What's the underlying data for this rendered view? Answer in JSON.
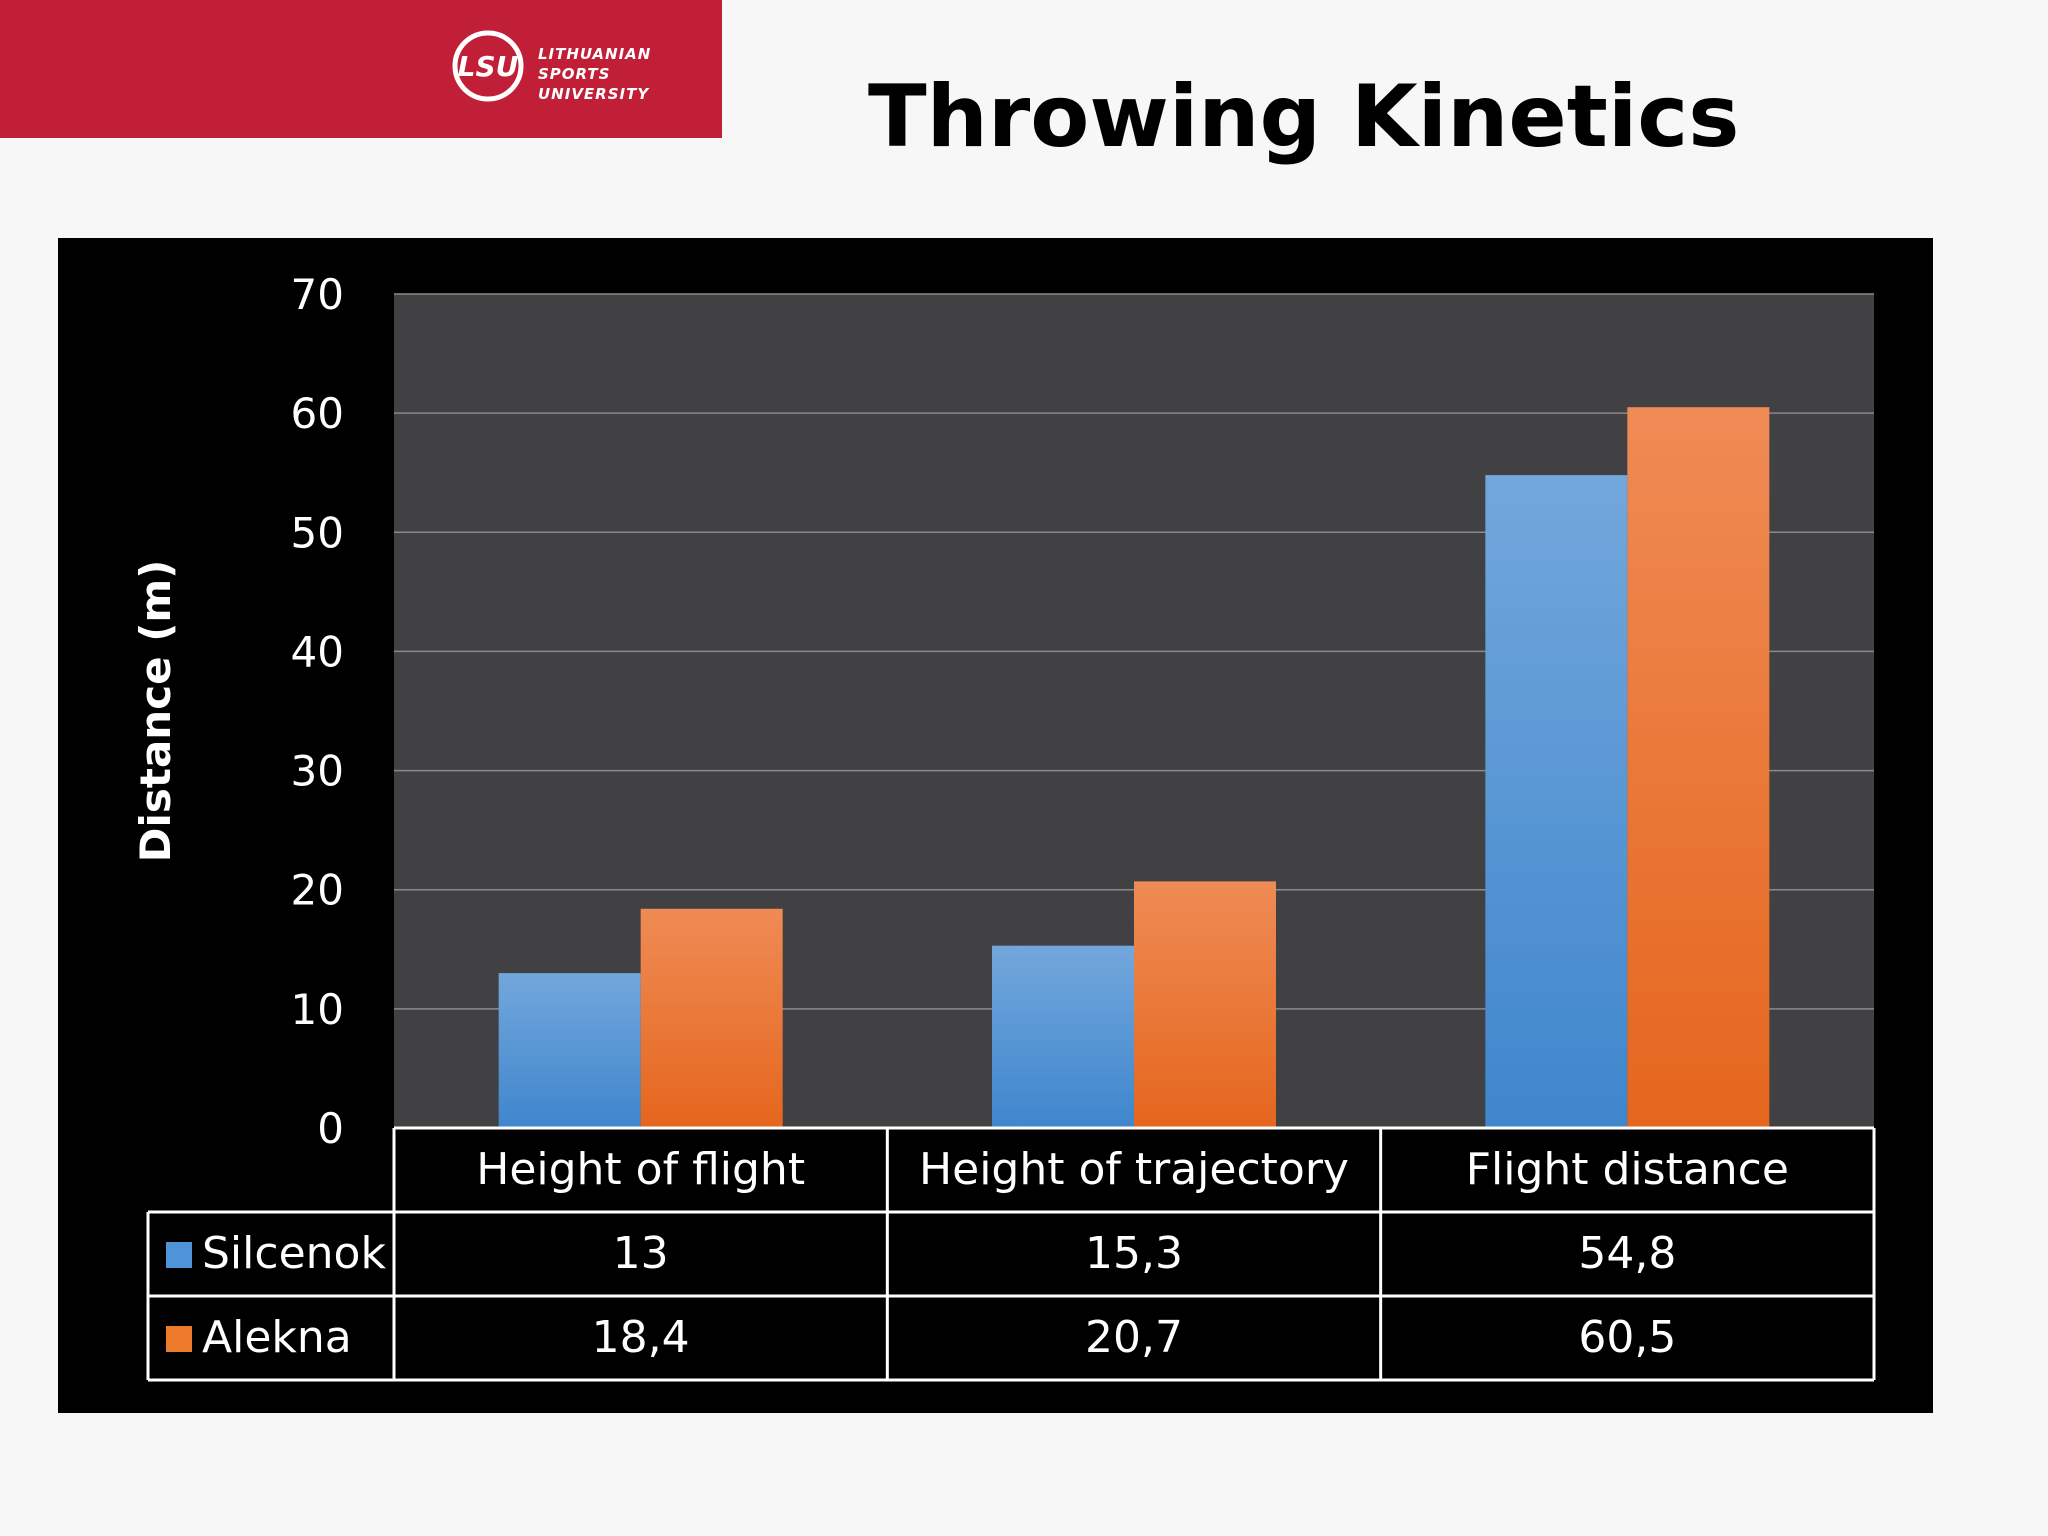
{
  "logo": {
    "mark": "LSU",
    "lines": [
      "LITHUANIAN",
      "SPORTS",
      "UNIVERSITY"
    ]
  },
  "title": "Throwing Kinetics",
  "colors": {
    "brand": "#c11f37",
    "silcenok": "#4f94d8",
    "alekna": "#ee7a2c",
    "plot_bg": "#414043"
  },
  "chart_data": {
    "type": "bar",
    "title": "",
    "xlabel": "",
    "ylabel": "Distance (m)",
    "ylim": [
      0,
      70
    ],
    "yticks": [
      "0",
      "10",
      "20",
      "30",
      "40",
      "50",
      "60",
      "70"
    ],
    "grid": true,
    "legend": "data table",
    "categories": [
      "Height of flight",
      "Height of trajectory",
      "Flight distance"
    ],
    "series": [
      {
        "name": "Silcenok",
        "values": [
          13,
          15.3,
          54.8
        ],
        "labels": [
          "13",
          "15,3",
          "54,8"
        ]
      },
      {
        "name": "Alekna",
        "values": [
          18.4,
          20.7,
          60.5
        ],
        "labels": [
          "18,4",
          "20,7",
          "60,5"
        ]
      }
    ]
  }
}
